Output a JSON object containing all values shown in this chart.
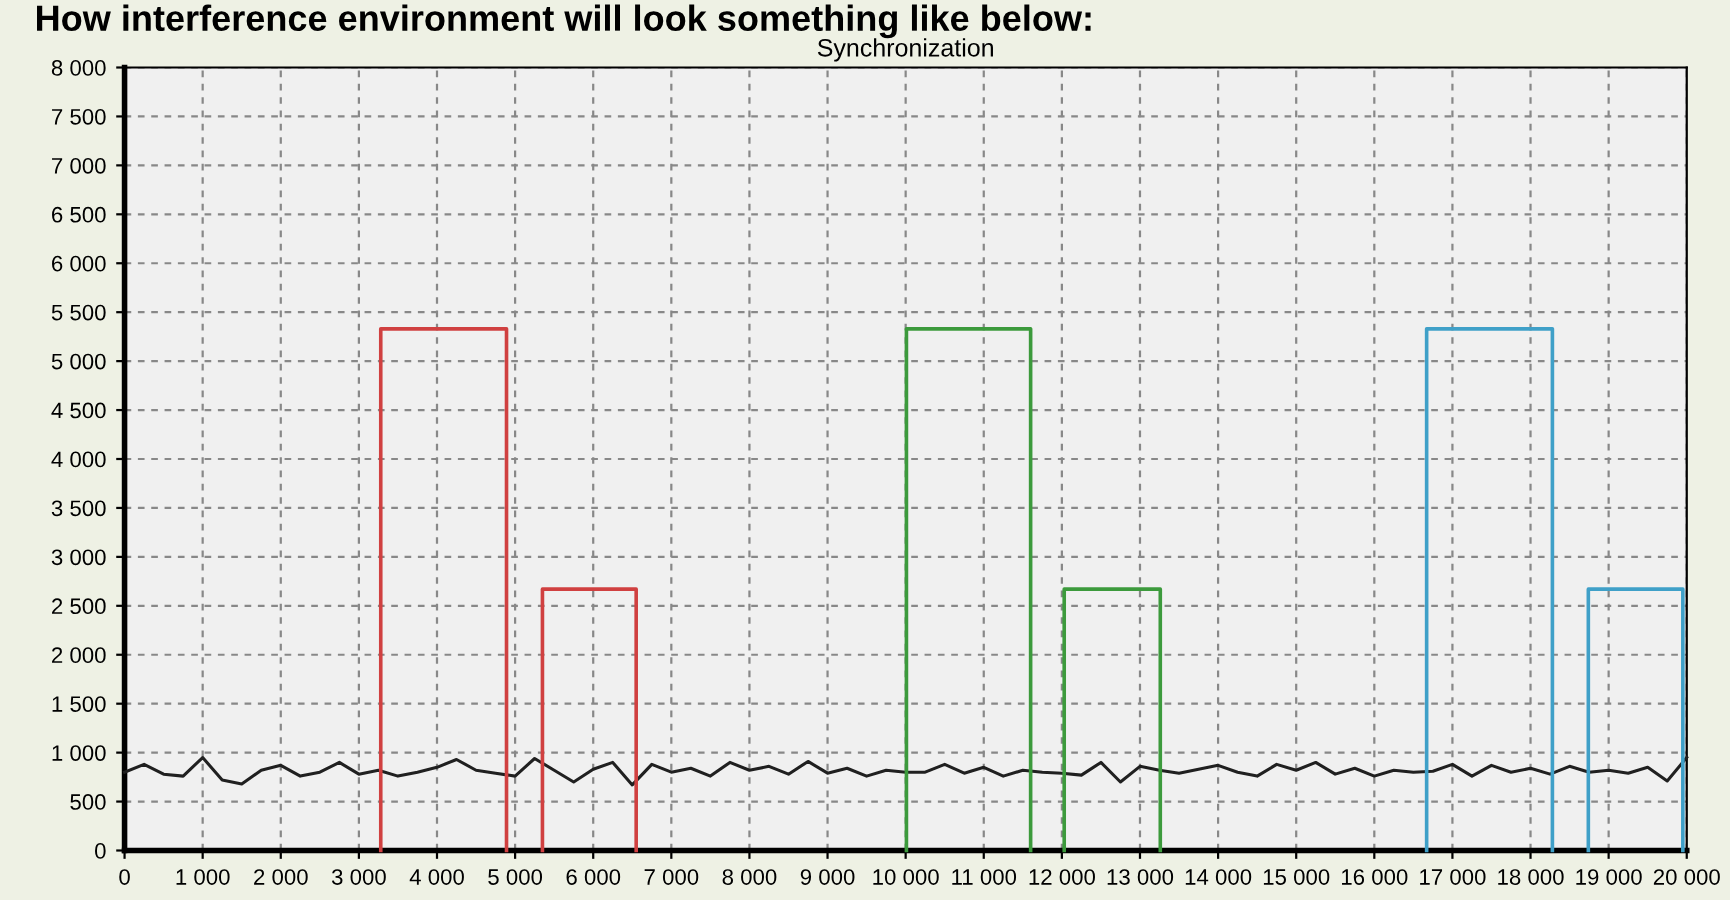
{
  "chart_data": {
    "type": "line",
    "title": "Synchronization",
    "annotations": [
      "How interference environment will look something like below:"
    ],
    "series": [
      {
        "color": "#202020",
        "x": [
          0,
          250,
          500,
          750,
          1000,
          1250,
          1500,
          1750,
          2000,
          2250,
          2500,
          2750,
          3000,
          3250,
          3500,
          3750,
          4000,
          4250,
          4500,
          4750,
          5000,
          5250,
          5500,
          5750,
          6000,
          6250,
          6500,
          6750,
          7000,
          7250,
          7500,
          7750,
          8000,
          8250,
          8500,
          8750,
          9000,
          9250,
          9500,
          9750,
          10000,
          10250,
          10500,
          10750,
          11000,
          11250,
          11500,
          11750,
          12000,
          12250,
          12500,
          12750,
          13000,
          13250,
          13500,
          13750,
          14000,
          14250,
          14500,
          14750,
          15000,
          15250,
          15500,
          15750,
          16000,
          16250,
          16500,
          16750,
          17000,
          17250,
          17500,
          17750,
          18000,
          18250,
          18500,
          18750,
          19000,
          19250,
          19500,
          19750,
          20000
        ],
        "values": [
          800,
          880,
          780,
          760,
          950,
          720,
          680,
          820,
          870,
          760,
          800,
          900,
          780,
          820,
          760,
          800,
          850,
          930,
          820,
          790,
          760,
          940,
          820,
          700,
          830,
          900,
          670,
          880,
          800,
          840,
          760,
          900,
          820,
          860,
          780,
          910,
          790,
          840,
          760,
          820,
          800,
          800,
          880,
          790,
          850,
          760,
          820,
          800,
          790,
          770,
          900,
          700,
          860,
          820,
          790,
          830,
          870,
          800,
          760,
          880,
          820,
          900,
          780,
          840,
          760,
          820,
          800,
          810,
          880,
          760,
          870,
          800,
          840,
          780,
          860,
          800,
          820,
          790,
          850,
          710,
          950
        ]
      },
      {
        "color": "#d04040",
        "x": [
          3280,
          3280,
          4890,
          4890
        ],
        "values": [
          0,
          5330,
          5330,
          0
        ]
      },
      {
        "color": "#d04040",
        "x": [
          5350,
          5350,
          6550,
          6550
        ],
        "values": [
          0,
          2670,
          2670,
          0
        ]
      },
      {
        "color": "#3c9a3c",
        "x": [
          10010,
          10010,
          11600,
          11600
        ],
        "values": [
          0,
          5330,
          5330,
          0
        ]
      },
      {
        "color": "#3c9a3c",
        "x": [
          12030,
          12030,
          13260,
          13260
        ],
        "values": [
          0,
          2670,
          2670,
          0
        ]
      },
      {
        "color": "#3fa0c8",
        "x": [
          16670,
          16670,
          18280,
          18280
        ],
        "values": [
          0,
          5330,
          5330,
          0
        ]
      },
      {
        "color": "#3fa0c8",
        "x": [
          18740,
          18740,
          19950,
          19950
        ],
        "values": [
          0,
          2670,
          2670,
          0
        ]
      }
    ],
    "xlim": [
      0,
      20000
    ],
    "xticks": [
      {
        "value": 0,
        "label": "0"
      },
      {
        "value": 1000,
        "label": "1 000"
      },
      {
        "value": 2000,
        "label": "2 000"
      },
      {
        "value": 3000,
        "label": "3 000"
      },
      {
        "value": 4000,
        "label": "4 000"
      },
      {
        "value": 5000,
        "label": "5 000"
      },
      {
        "value": 6000,
        "label": "6 000"
      },
      {
        "value": 7000,
        "label": "7 000"
      },
      {
        "value": 8000,
        "label": "8 000"
      },
      {
        "value": 9000,
        "label": "9 000"
      },
      {
        "value": 10000,
        "label": "10 000"
      },
      {
        "value": 11000,
        "label": "11 000"
      },
      {
        "value": 12000,
        "label": "12 000"
      },
      {
        "value": 13000,
        "label": "13 000"
      },
      {
        "value": 14000,
        "label": "14 000"
      },
      {
        "value": 15000,
        "label": "15 000"
      },
      {
        "value": 16000,
        "label": "16 000"
      },
      {
        "value": 17000,
        "label": "17 000"
      },
      {
        "value": 18000,
        "label": "18 000"
      },
      {
        "value": 19000,
        "label": "19 000"
      },
      {
        "value": 20000,
        "label": "20 000"
      }
    ],
    "ylim": [
      0,
      8000
    ],
    "yticks": [
      {
        "value": 0,
        "label": "0"
      },
      {
        "value": 500,
        "label": "500"
      },
      {
        "value": 1000,
        "label": "1 000"
      },
      {
        "value": 1500,
        "label": "1 500"
      },
      {
        "value": 2000,
        "label": "2 000"
      },
      {
        "value": 2500,
        "label": "2 500"
      },
      {
        "value": 3000,
        "label": "3 000"
      },
      {
        "value": 3500,
        "label": "3 500"
      },
      {
        "value": 4000,
        "label": "4 000"
      },
      {
        "value": 4500,
        "label": "4 500"
      },
      {
        "value": 5000,
        "label": "5 000"
      },
      {
        "value": 5500,
        "label": "5 500"
      },
      {
        "value": 6000,
        "label": "6 000"
      },
      {
        "value": 6500,
        "label": "6 500"
      },
      {
        "value": 7000,
        "label": "7 000"
      },
      {
        "value": 7500,
        "label": "7 500"
      },
      {
        "value": 8000,
        "label": "8 000"
      }
    ],
    "grid": true,
    "line_style": "solid",
    "marker": "none",
    "legend": false
  }
}
